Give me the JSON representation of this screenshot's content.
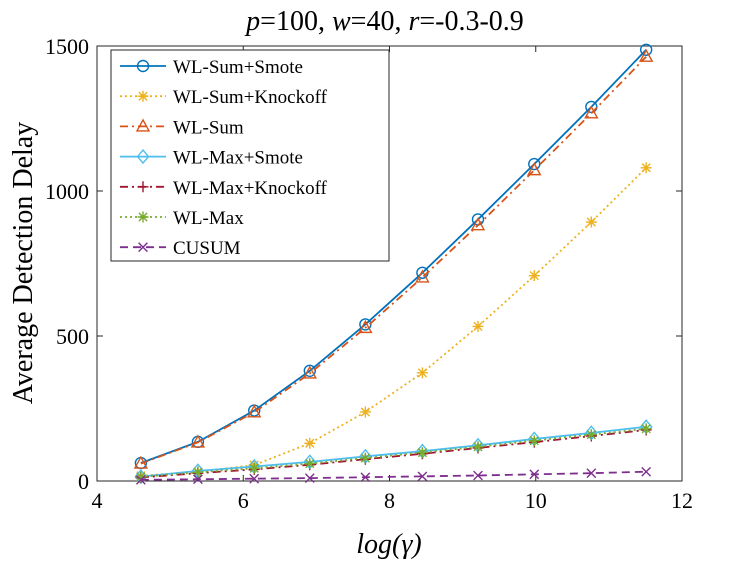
{
  "chart_data": {
    "type": "line",
    "title": "p=100, w=40, r=-0.3-0.9",
    "title_parts": {
      "p_var": "p",
      "p_rest": "=100, ",
      "w_var": "w",
      "w_rest": "=40, ",
      "r_var": "r",
      "r_rest": "=-0.3-0.9"
    },
    "xlabel": "log(γ)",
    "ylabel": "Average Detection Delay",
    "xlim": [
      4,
      12
    ],
    "ylim": [
      0,
      1500
    ],
    "xticks": [
      4,
      6,
      8,
      10,
      12
    ],
    "yticks": [
      0,
      500,
      1000,
      1500
    ],
    "x": [
      4.6,
      5.38,
      6.15,
      6.91,
      7.67,
      8.45,
      9.21,
      9.98,
      10.76,
      11.51
    ],
    "series": [
      {
        "name": "WL-Sum+Smote",
        "color": "#0072BD",
        "style": "solid",
        "marker": "circle",
        "values": [
          62,
          135,
          243,
          380,
          540,
          718,
          902,
          1093,
          1290,
          1487
        ]
      },
      {
        "name": "WL-Sum+Knockoff",
        "color": "#EDB120",
        "style": "dotted",
        "marker": "asterisk",
        "values": [
          18,
          32,
          55,
          130,
          238,
          373,
          533,
          708,
          893,
          1080
        ]
      },
      {
        "name": "WL-Sum",
        "color": "#D95319",
        "style": "dashdot",
        "marker": "triangle",
        "values": [
          60,
          133,
          237,
          371,
          528,
          702,
          882,
          1072,
          1268,
          1463
        ]
      },
      {
        "name": "WL-Max+Smote",
        "color": "#4DBEEE",
        "style": "solid",
        "marker": "diamond",
        "values": [
          15,
          35,
          50,
          66,
          85,
          103,
          123,
          145,
          166,
          187
        ]
      },
      {
        "name": "WL-Max+Knockoff",
        "color": "#A2142F",
        "style": "dashdot",
        "marker": "plus",
        "values": [
          12,
          27,
          40,
          56,
          75,
          94,
          114,
          134,
          155,
          176
        ]
      },
      {
        "name": "WL-Max",
        "color": "#77AC30",
        "style": "dotted",
        "marker": "asterisk",
        "values": [
          14,
          30,
          44,
          60,
          79,
          98,
          118,
          139,
          160,
          180
        ]
      },
      {
        "name": "CUSUM",
        "color": "#7E2F8E",
        "style": "dashed",
        "marker": "x",
        "values": [
          4,
          6,
          8,
          10,
          13,
          16,
          19,
          23,
          27,
          32
        ]
      }
    ],
    "legend_position": "top-left",
    "grid": false
  }
}
